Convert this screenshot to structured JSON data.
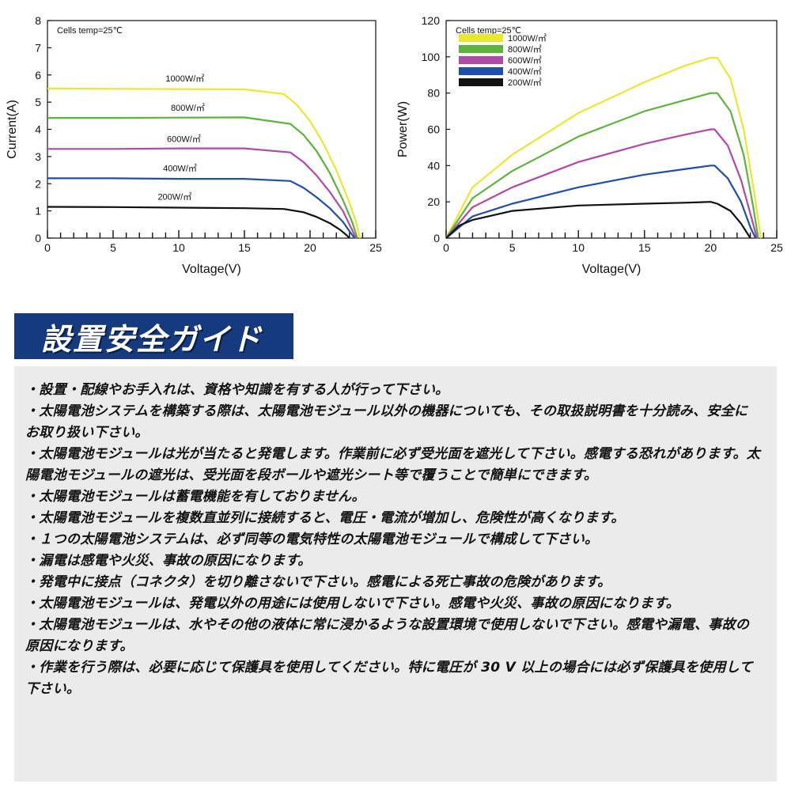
{
  "chart_data": [
    {
      "type": "line",
      "title": "Cells temp=25℃",
      "xlabel": "Voltage(V)",
      "ylabel": "Current(A)",
      "xlim": [
        0,
        25
      ],
      "ylim": [
        0,
        8
      ],
      "xticks": [
        0,
        5,
        10,
        15,
        20,
        25
      ],
      "yticks": [
        0,
        1,
        2,
        3,
        4,
        5,
        6,
        7,
        8
      ],
      "grid": false,
      "series": [
        {
          "name": "1000W/㎡",
          "color": "#e8e830",
          "x": [
            0,
            5,
            10,
            15,
            18,
            19,
            20,
            21,
            22,
            23,
            23.5,
            23.8
          ],
          "y": [
            5.5,
            5.49,
            5.48,
            5.47,
            5.3,
            4.9,
            4.3,
            3.5,
            2.5,
            1.3,
            0.6,
            0
          ]
        },
        {
          "name": "800W/㎡",
          "color": "#5db33b",
          "x": [
            0,
            5,
            10,
            15,
            18.5,
            19.5,
            20.5,
            21.5,
            22.5,
            23.2,
            23.6
          ],
          "y": [
            4.42,
            4.42,
            4.43,
            4.44,
            4.2,
            3.8,
            3.2,
            2.4,
            1.4,
            0.6,
            0
          ]
        },
        {
          "name": "600W/㎡",
          "color": "#b04aa8",
          "x": [
            0,
            5,
            10,
            15,
            18.5,
            19.5,
            20.5,
            21.5,
            22.5,
            23.1,
            23.5
          ],
          "y": [
            3.28,
            3.28,
            3.3,
            3.3,
            3.15,
            2.8,
            2.3,
            1.7,
            1.0,
            0.4,
            0
          ]
        },
        {
          "name": "400W/㎡",
          "color": "#1f4fa8",
          "x": [
            0,
            5,
            10,
            15,
            18.5,
            19.5,
            20.5,
            21.5,
            22.5,
            23.0,
            23.4
          ],
          "y": [
            2.2,
            2.2,
            2.18,
            2.18,
            2.1,
            1.85,
            1.5,
            1.1,
            0.6,
            0.25,
            0
          ]
        },
        {
          "name": "200W/㎡",
          "color": "#111111",
          "x": [
            0,
            5,
            10,
            15,
            18,
            19.5,
            20.5,
            21.5,
            22.3,
            22.8,
            23.0
          ],
          "y": [
            1.15,
            1.14,
            1.12,
            1.1,
            1.07,
            0.95,
            0.78,
            0.55,
            0.3,
            0.1,
            0
          ]
        }
      ],
      "annotations": [
        "1000W/㎡",
        "800W/㎡",
        "600W/㎡",
        "400W/㎡",
        "200W/㎡"
      ]
    },
    {
      "type": "line",
      "title": "Cells temp=25℃",
      "xlabel": "Voltage(V)",
      "ylabel": "Power(W)",
      "xlim": [
        0,
        25
      ],
      "ylim": [
        0,
        120
      ],
      "xticks": [
        0,
        5,
        10,
        15,
        20,
        25
      ],
      "yticks": [
        0,
        20,
        40,
        60,
        80,
        100,
        120
      ],
      "grid": false,
      "legend": "top-left",
      "series": [
        {
          "name": "1000W/㎡",
          "color": "#e8e830",
          "x": [
            0,
            2,
            5,
            10,
            15,
            18,
            20,
            20.5,
            21.5,
            22.5,
            23.3,
            23.8
          ],
          "y": [
            0,
            28,
            46,
            69,
            86,
            95,
            99.5,
            99.5,
            88,
            60,
            25,
            0
          ]
        },
        {
          "name": "800W/㎡",
          "color": "#5db33b",
          "x": [
            0,
            2,
            5,
            10,
            15,
            18,
            20,
            20.5,
            21.5,
            22.5,
            23.2,
            23.6
          ],
          "y": [
            0,
            22,
            37,
            56,
            70,
            76,
            80,
            80,
            70,
            46,
            18,
            0
          ]
        },
        {
          "name": "600W/㎡",
          "color": "#b04aa8",
          "x": [
            0,
            2,
            5,
            10,
            15,
            18,
            20,
            20.3,
            21.3,
            22.3,
            23.1,
            23.5
          ],
          "y": [
            0,
            17,
            28,
            42,
            52,
            57,
            60,
            60,
            51,
            32,
            11,
            0
          ]
        },
        {
          "name": "400W/㎡",
          "color": "#1f4fa8",
          "x": [
            0,
            2,
            5,
            10,
            15,
            18,
            20,
            20.3,
            21.3,
            22.3,
            23.0,
            23.4
          ],
          "y": [
            0,
            12,
            19,
            28,
            35,
            38,
            40,
            40,
            33,
            20,
            6,
            0
          ]
        },
        {
          "name": "200W/㎡",
          "color": "#111111",
          "x": [
            0,
            1,
            2,
            5,
            10,
            15,
            18,
            20,
            20.5,
            21.5,
            22.3,
            23.0
          ],
          "y": [
            0,
            7,
            10,
            15,
            18,
            19,
            19.5,
            20,
            19,
            15,
            8,
            0
          ]
        }
      ]
    }
  ],
  "banner": {
    "title": "設置安全ガイド"
  },
  "guide": {
    "items": [
      "・設置・配線やお手入れは、資格や知識を有する人が行って下さい。",
      "・太陽電池システムを構築する際は、太陽電池モジュール以外の機器についても、その取扱説明書を十分読み、安全にお取り扱い下さい。",
      "・太陽電池モジュールは光が当たると発電します。作業前に必ず受光面を遮光して下さい。感電する恐れがあります。太陽電池モジュールの遮光は、受光面を段ボールや遮光シート等で覆うことで簡単にできます。",
      "・太陽電池モジュールは蓄電機能を有しておりません。",
      "・太陽電池モジュールを複数直並列に接続すると、電圧・電流が増加し、危険性が高くなります。",
      "・１つの太陽電池システムは、必ず同等の電気特性の太陽電池モジュールで構成して下さい。",
      "・漏電は感電や火災、事故の原因になります。",
      "・発電中に接点（コネクタ）を切り離さないで下さい。感電による死亡事故の危険があります。",
      "・太陽電池モジュールは、発電以外の用途には使用しないで下さい。感電や火災、事故の原因になります。",
      "・太陽電池モジュールは、水やその他の液体に常に浸かるような設置環境で使用しないで下さい。感電や漏電、事故の原因になります。",
      "・作業を行う際は、必要に応じて保護具を使用してください。特に電圧が 30 V 以上の場合には必ず保護具を使用して下さい。"
    ]
  }
}
